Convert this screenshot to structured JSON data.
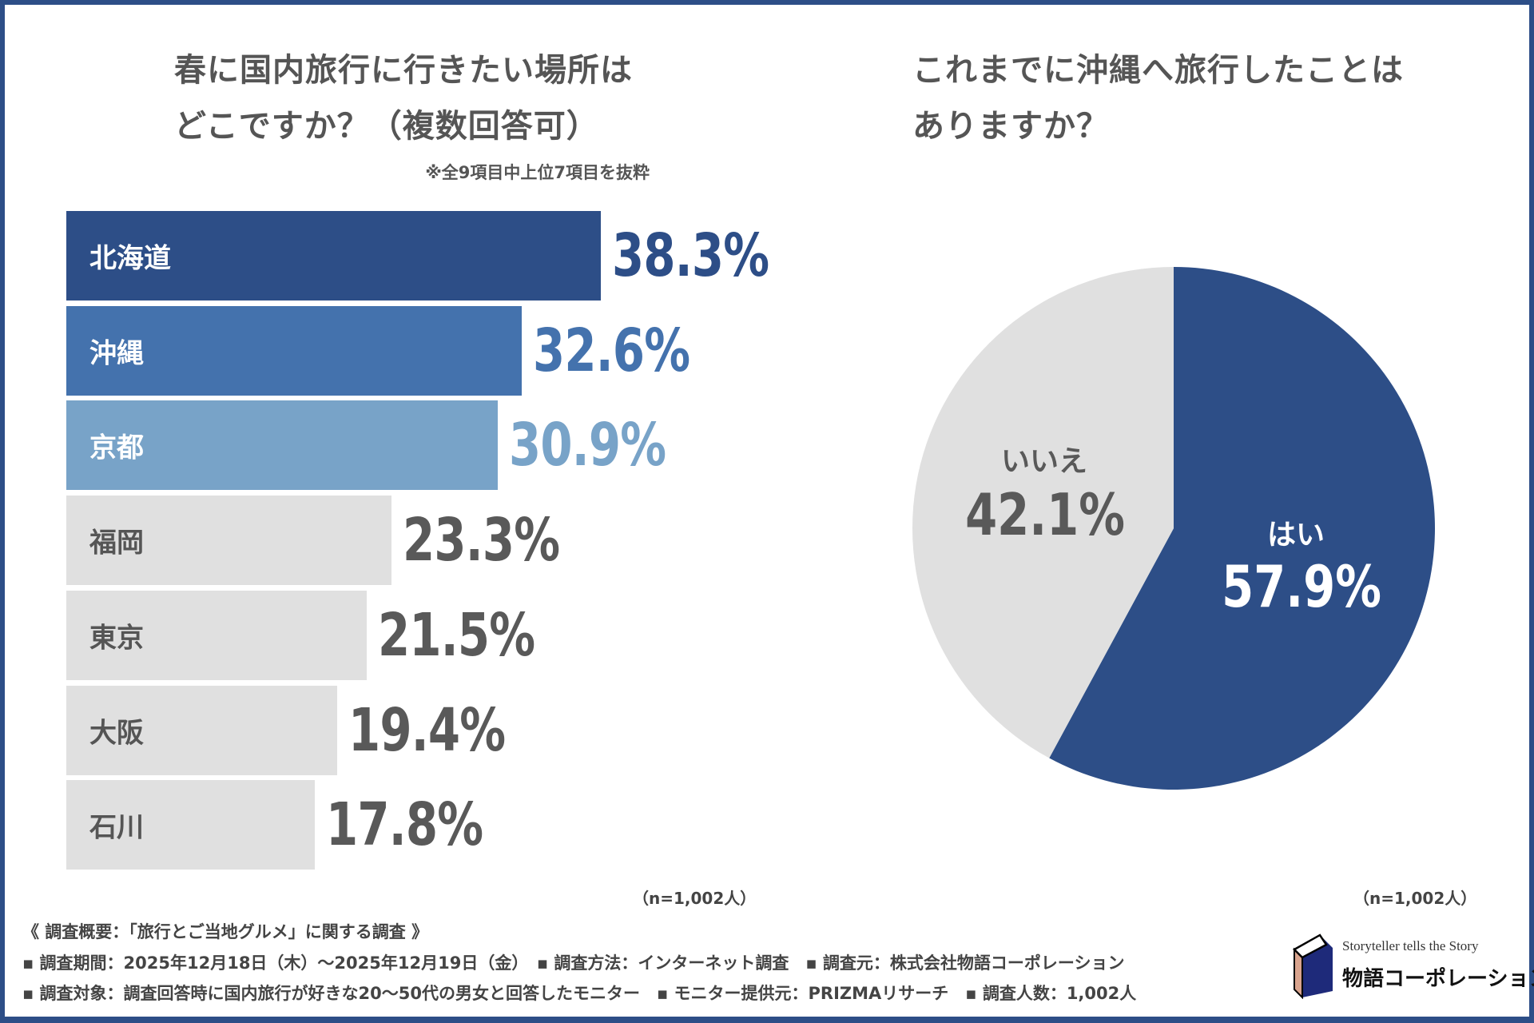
{
  "left_chart": {
    "title_line1": "春に国内旅行に行きたい場所は",
    "title_line2": "どこですか？（複数回答可）",
    "note": "※全9項目中上位7項目を抜粋",
    "sample": "（n=1,002人）"
  },
  "right_chart": {
    "title_line1": "これまでに沖縄へ旅行したことは",
    "title_line2": "ありますか？",
    "sample": "（n=1,002人）"
  },
  "chart_data": [
    {
      "type": "bar",
      "orientation": "horizontal",
      "categories": [
        "北海道",
        "沖縄",
        "京都",
        "福岡",
        "東京",
        "大阪",
        "石川"
      ],
      "values": [
        38.3,
        32.6,
        30.9,
        23.3,
        21.5,
        19.4,
        17.8
      ],
      "labels": [
        "38.3%",
        "32.6%",
        "30.9%",
        "23.3%",
        "21.5%",
        "19.4%",
        "17.8%"
      ],
      "colors": [
        "#2d4e87",
        "#4472ad",
        "#78a3c8",
        "#e0e0e0",
        "#e0e0e0",
        "#e0e0e0",
        "#e0e0e0"
      ],
      "label_colors": [
        "#2d4e87",
        "#4472ad",
        "#78a3c8",
        "#595959",
        "#595959",
        "#595959",
        "#595959"
      ],
      "unit": "%"
    },
    {
      "type": "pie",
      "slices": [
        {
          "label": "はい",
          "value": 57.9,
          "display": "57.9%",
          "color": "#2d4e87"
        },
        {
          "label": "いいえ",
          "value": 42.1,
          "display": "42.1%",
          "color": "#e0e0e0"
        }
      ]
    }
  ],
  "footer": {
    "heading": "《 調査概要：「旅行とご当地グルメ」に関する調査 》",
    "line1": "▪ 調査期間：2025年12月18日（木）～2025年12月19日（金）　▪ 調査方法：インターネット調査　▪ 調査元：株式会社物語コーポレーション",
    "line2": "▪ 調査対象：調査回答時に国内旅行が好きな20～50代の男女と回答したモニター　▪ モニター提供元：PRIZMAリサーチ　▪ 調査人数：1,002人"
  },
  "logo": {
    "tagline": "Storyteller tells the Story",
    "name": "物語コーポレーション"
  }
}
